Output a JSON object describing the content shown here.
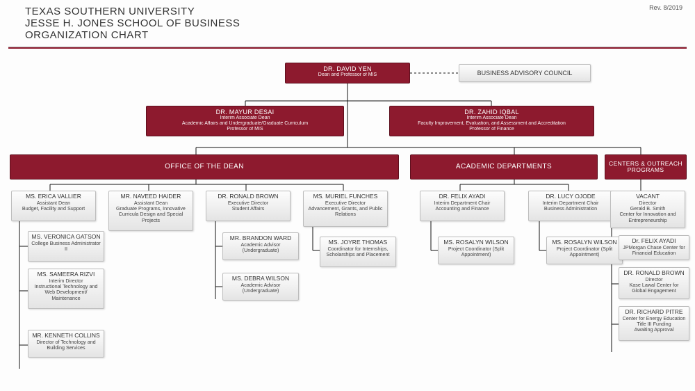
{
  "header": {
    "line1": "TEXAS SOUTHERN UNIVERSITY",
    "line2": "JESSE H. JONES SCHOOL OF BUSINESS",
    "line3": "ORGANIZATION CHART",
    "revision": "Rev. 8/2019"
  },
  "colors": {
    "maroon": "#8d1a2e",
    "gray_border": "#bdbdbd",
    "line": "#111111"
  },
  "top": {
    "dean": {
      "name": "DR. DAVID YEN",
      "role": "Dean and Professor of MIS"
    },
    "advisory": {
      "name": "BUSINESS ADVISORY COUNCIL"
    },
    "assoc_left": {
      "name": "DR. MAYUR DESAI",
      "role1": "Interim Associate Dean",
      "role2": "Academic Affairs and Undergraduate/Graduate Curriculum",
      "role3": "Professor of MIS"
    },
    "assoc_right": {
      "name": "DR. ZAHID IQBAL",
      "role1": "Interim Associate Dean",
      "role2": "Faculty Improvement, Evaluation, and Assessment and Accreditation",
      "role3": "Professor of Finance"
    }
  },
  "sections": {
    "office": "OFFICE OF THE DEAN",
    "academic": "ACADEMIC DEPARTMENTS",
    "centers": "CENTERS & OUTREACH PROGRAMS"
  },
  "office": {
    "col1": {
      "head": {
        "name": "MS. ERICA VALLIER",
        "role": "Assistant Dean\nBudget, Facility and Support"
      },
      "sub": [
        {
          "name": "MS. VERONICA GATSON",
          "role": "College Business Administrator II"
        },
        {
          "name": "MS. SAMEERA RIZVI",
          "role": "Interim Director\nInstructional Technology and Web Development/ Maintenance"
        },
        {
          "name": "MR. KENNETH COLLINS",
          "role": "Director of Technology and Building Services"
        }
      ]
    },
    "col2": {
      "head": {
        "name": "MR. NAVEED HAIDER",
        "role": "Assistant Dean\nGraduate Programs, Innovative Curricula Design and Special Projects"
      }
    },
    "col3": {
      "head": {
        "name": "DR. RONALD BROWN",
        "role": "Executive Director\nStudent Affairs"
      },
      "sub": [
        {
          "name": "MR. BRANDON WARD",
          "role": "Academic Advisor (Undergraduate)"
        },
        {
          "name": "MS. DEBRA WILSON",
          "role": "Academic Advisor (Undergraduate)"
        }
      ]
    },
    "col4": {
      "head": {
        "name": "MS. MURIEL FUNCHES",
        "role": "Executive Director\nAdvancement, Grants, and Public Relations"
      },
      "sub": [
        {
          "name": "MS. JOYRE THOMAS",
          "role": "Coordinator for Internships, Scholarships and Placement"
        }
      ]
    }
  },
  "academic": {
    "col1": {
      "head": {
        "name": "DR. FELIX AYADI",
        "role": "Interim Department Chair\nAccounting and Finance"
      },
      "sub": [
        {
          "name": "MS. ROSALYN WILSON",
          "role": "Project Coordinator (Split Appointment)"
        }
      ]
    },
    "col2": {
      "head": {
        "name": "DR. LUCY OJODE",
        "role": "Interim Department Chair\nBusiness Administration"
      },
      "sub": [
        {
          "name": "MS. ROSALYN WILSON",
          "role": "Project Coordinator (Split Appointment)"
        }
      ]
    }
  },
  "centers": [
    {
      "name": "VACANT",
      "role": "Director\nGerald B. Smith\nCenter for Innovation and Entrepreneurship"
    },
    {
      "name": "Dr. FELIX AYADI",
      "role": "JPMorgan Chase Center for Financial Education"
    },
    {
      "name": "DR. RONALD BROWN",
      "role": "Director\nKase Lawal Center for Global Engagement"
    },
    {
      "name": "DR. RICHARD PITRE",
      "role": "Center for Energy Education\nTitle III Funding\nAwaiting Approval"
    }
  ]
}
